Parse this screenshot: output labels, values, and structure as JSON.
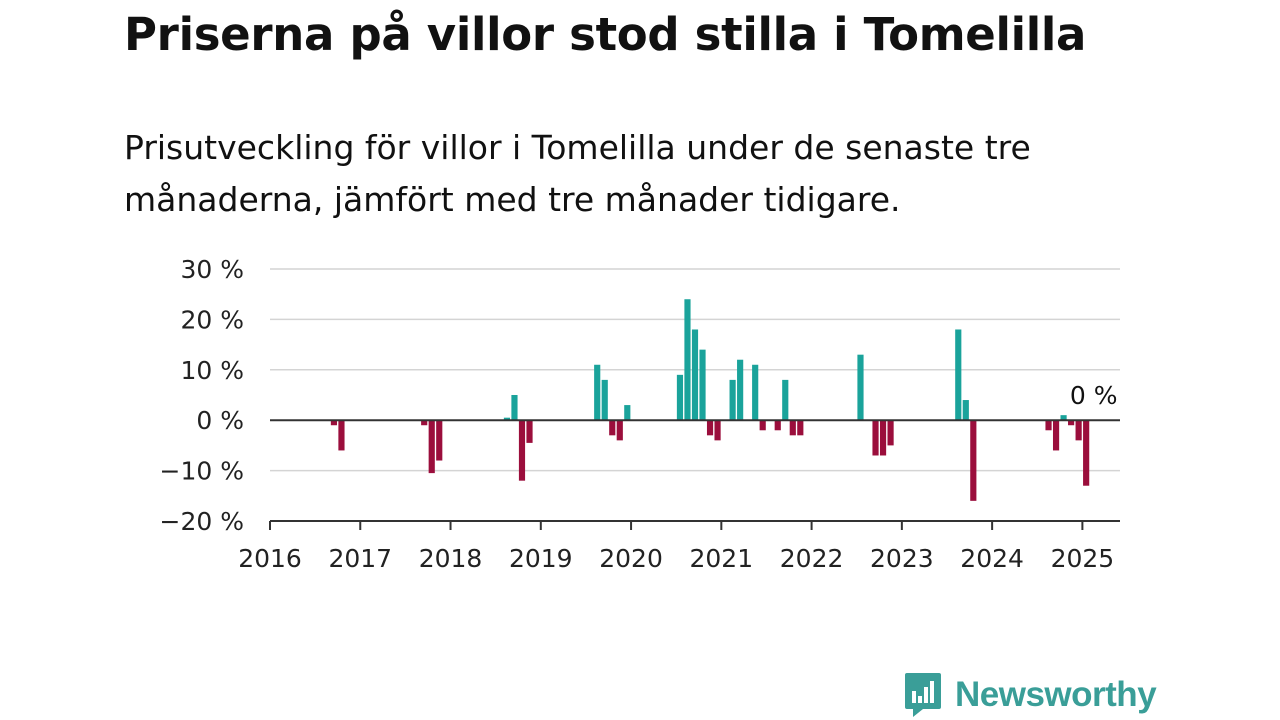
{
  "header": {
    "title": "Priserna på villor stod stilla i Tomelilla",
    "subtitle": "Prisutveckling för villor i Tomelilla under de senaste tre månaderna, jämfört med tre månader tidigare."
  },
  "brand": {
    "name": "Newsworthy",
    "icon": "newsworthy-logo-icon",
    "color": "#3a9e98"
  },
  "colors": {
    "positive": "#1aa39b",
    "negative": "#9b0e3c",
    "grid": "#d4d4d4",
    "axis": "#333333"
  },
  "chart_data": {
    "type": "bar",
    "title": "Priserna på villor stod stilla i Tomelilla",
    "subtitle": "Prisutveckling för villor i Tomelilla under de senaste tre månaderna, jämfört med tre månader tidigare.",
    "xlabel": "",
    "ylabel": "",
    "ylim": [
      -20,
      30
    ],
    "xlim": [
      "2016-01",
      "2025-06"
    ],
    "y_ticks": [
      -20,
      -10,
      0,
      10,
      20,
      30
    ],
    "y_tick_labels": [
      "−20 %",
      "−10 %",
      "0 %",
      "10 %",
      "20 %",
      "30 %"
    ],
    "x_ticks": [
      "2016",
      "2017",
      "2018",
      "2019",
      "2020",
      "2021",
      "2022",
      "2023",
      "2024",
      "2025"
    ],
    "grid": true,
    "last_value_label": "0 %",
    "series": [
      {
        "unit": "%",
        "points": [
          {
            "x": "2016-09",
            "y": -1
          },
          {
            "x": "2016-10",
            "y": -6
          },
          {
            "x": "2017-09",
            "y": -1
          },
          {
            "x": "2017-10",
            "y": -10.5
          },
          {
            "x": "2017-11",
            "y": -8
          },
          {
            "x": "2018-08",
            "y": 0.5
          },
          {
            "x": "2018-09",
            "y": 5
          },
          {
            "x": "2018-10",
            "y": -12
          },
          {
            "x": "2018-11",
            "y": -4.5
          },
          {
            "x": "2019-08",
            "y": 11
          },
          {
            "x": "2019-09",
            "y": 8
          },
          {
            "x": "2019-10",
            "y": -3
          },
          {
            "x": "2019-11",
            "y": -4
          },
          {
            "x": "2019-12",
            "y": 3
          },
          {
            "x": "2020-07",
            "y": 9
          },
          {
            "x": "2020-08",
            "y": 24
          },
          {
            "x": "2020-09",
            "y": 18
          },
          {
            "x": "2020-10",
            "y": 14
          },
          {
            "x": "2020-11",
            "y": -3
          },
          {
            "x": "2020-12",
            "y": -4
          },
          {
            "x": "2021-02",
            "y": 8
          },
          {
            "x": "2021-03",
            "y": 12
          },
          {
            "x": "2021-05",
            "y": 11
          },
          {
            "x": "2021-06",
            "y": -2
          },
          {
            "x": "2021-08",
            "y": -2
          },
          {
            "x": "2021-09",
            "y": 8
          },
          {
            "x": "2021-10",
            "y": -3
          },
          {
            "x": "2021-11",
            "y": -3
          },
          {
            "x": "2022-07",
            "y": 13
          },
          {
            "x": "2022-09",
            "y": -7
          },
          {
            "x": "2022-10",
            "y": -7
          },
          {
            "x": "2022-11",
            "y": -5
          },
          {
            "x": "2023-08",
            "y": 18
          },
          {
            "x": "2023-09",
            "y": 4
          },
          {
            "x": "2023-10",
            "y": -16
          },
          {
            "x": "2024-08",
            "y": -2
          },
          {
            "x": "2024-09",
            "y": -6
          },
          {
            "x": "2024-10",
            "y": 1
          },
          {
            "x": "2024-11",
            "y": -1
          },
          {
            "x": "2024-12",
            "y": -4
          },
          {
            "x": "2025-01",
            "y": -13
          },
          {
            "x": "2025-02",
            "y": 0
          }
        ]
      }
    ]
  }
}
